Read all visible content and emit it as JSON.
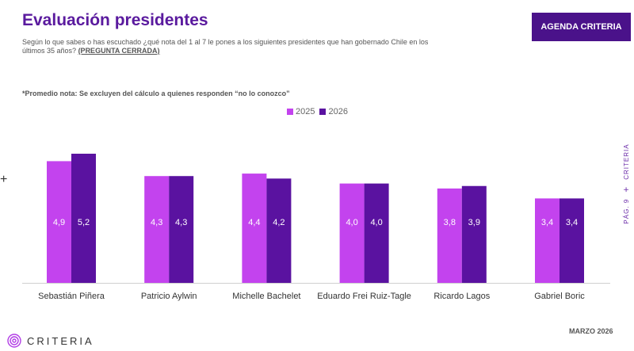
{
  "header": {
    "title": "Evaluación presidentes",
    "subtitle": "Según lo que sabes o has escuchado ¿qué nota del 1 al 7 le pones a los siguientes presidentes que han gobernado Chile en los últimos 35 años?",
    "subtitle_tag": "(PREGUNTA CERRADA)",
    "badge": "AGENDA CRITERIA"
  },
  "note": "*Promedio nota: Se excluyen del cálculo a quienes responden “no lo conozco”",
  "side": {
    "page": "PÁG. 9",
    "plus": "+",
    "brand": "CRITERIA"
  },
  "footer": {
    "date": "MARZO 2026",
    "logo_text": "CRITERIA"
  },
  "left_marker": "+",
  "colors": {
    "series_2025": "#c343ee",
    "series_2026": "#5a12a0",
    "title": "#5a1a9e"
  },
  "chart_data": {
    "type": "bar",
    "categories": [
      "Sebastián Piñera",
      "Patricio Aylwin",
      "Michelle Bachelet",
      "Eduardo Frei Ruiz-Tagle",
      "Ricardo Lagos",
      "Gabriel Boric"
    ],
    "series": [
      {
        "name": "2025",
        "values": [
          4.9,
          4.3,
          4.4,
          4.0,
          3.8,
          3.4
        ],
        "labels": [
          "4,9",
          "4,3",
          "4,4",
          "4,0",
          "3,8",
          "3,4"
        ],
        "color": "#c343ee"
      },
      {
        "name": "2026",
        "values": [
          5.2,
          4.3,
          4.2,
          4.0,
          3.9,
          3.4
        ],
        "labels": [
          "5,2",
          "4,3",
          "4,2",
          "4,0",
          "3,9",
          "3,4"
        ],
        "color": "#5a12a0"
      }
    ],
    "ylim": [
      0,
      5.4
    ],
    "grid": false,
    "legend": "top-center"
  }
}
